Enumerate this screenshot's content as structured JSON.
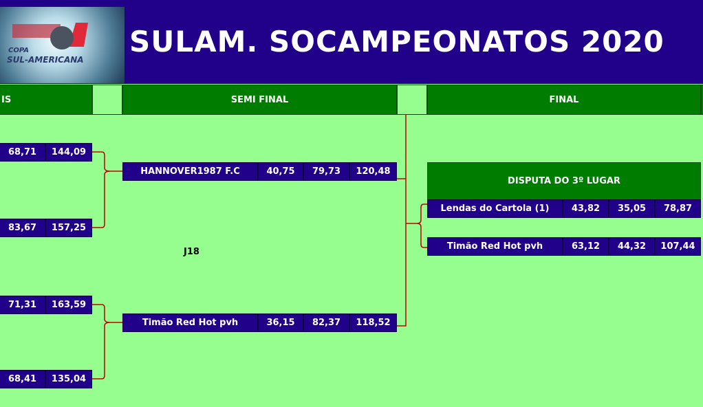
{
  "header": {
    "title": "SULAM. SOCAMPEONATOS 2020",
    "logo_text": [
      "COPA",
      "SUL-AMERICANA"
    ]
  },
  "columns": {
    "left": "IS",
    "semi": "SEMI FINAL",
    "final": "FINAL"
  },
  "left_matches": [
    [
      "68,71",
      "144,09"
    ],
    [
      "83,67",
      "157,25"
    ],
    [
      "71,31",
      "163,59"
    ],
    [
      "68,41",
      "135,04"
    ]
  ],
  "semi": [
    {
      "team": "HANNOVER1987 F.C",
      "s1": "40,75",
      "s2": "79,73",
      "total": "120,48"
    },
    {
      "team": "Timão Red Hot pvh",
      "s1": "36,15",
      "s2": "82,37",
      "total": "118,52"
    }
  ],
  "label": "J18",
  "third_place": {
    "title": "DISPUTA DO 3º LUGAR",
    "rows": [
      {
        "team": "Lendas do Cartola (1)",
        "s1": "43,82",
        "s2": "35,05",
        "total": "78,87"
      },
      {
        "team": "Timão Red Hot pvh",
        "s1": "63,12",
        "s2": "44,32",
        "total": "107,44"
      }
    ]
  },
  "colors": {
    "header": "#21008a",
    "green": "#007d00",
    "background": "#96fd8f",
    "bracket": "#c00000"
  }
}
